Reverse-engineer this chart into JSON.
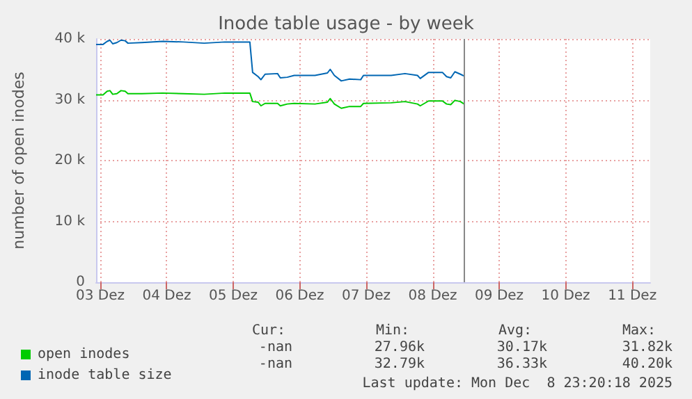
{
  "chart_data": {
    "type": "line",
    "title": "Inode table usage - by week",
    "ylabel": "number of open inodes",
    "xlim": [
      "2025-12-03T10:30",
      "2025-12-11T18:30"
    ],
    "xticks": [
      {
        "value": "2025-12-03T12:00",
        "label": "03 Dez"
      },
      {
        "value": "2025-12-04T12:00",
        "label": "04 Dez"
      },
      {
        "value": "2025-12-05T12:00",
        "label": "05 Dez"
      },
      {
        "value": "2025-12-06T12:00",
        "label": "06 Dez"
      },
      {
        "value": "2025-12-07T12:00",
        "label": "07 Dez"
      },
      {
        "value": "2025-12-08T12:00",
        "label": "08 Dez"
      },
      {
        "value": "2025-12-09T12:00",
        "label": "09 Dez"
      },
      {
        "value": "2025-12-10T12:00",
        "label": "10 Dez"
      },
      {
        "value": "2025-12-11T12:00",
        "label": "11 Dez"
      }
    ],
    "ylim": [
      0,
      40000
    ],
    "yticks": [
      0,
      {
        "value": 10000,
        "label": "10 k"
      },
      {
        "value": 20000,
        "label": "20 k"
      },
      {
        "value": 30000,
        "label": "30 k"
      },
      {
        "value": 40000,
        "label": "40 k"
      }
    ],
    "x": [
      "2025-12-03T10:30",
      "2025-12-03T13:00",
      "2025-12-03T14:30",
      "2025-12-03T15:30",
      "2025-12-03T16:30",
      "2025-12-03T18:00",
      "2025-12-03T19:30",
      "2025-12-03T21:00",
      "2025-12-03T22:00",
      "2025-12-04T03:00",
      "2025-12-04T10:30",
      "2025-12-04T18:00",
      "2025-12-05T01:30",
      "2025-12-05T09:00",
      "2025-12-05T18:00",
      "2025-12-05T19:00",
      "2025-12-05T21:00",
      "2025-12-05T22:00",
      "2025-12-05T23:30",
      "2025-12-06T04:00",
      "2025-12-06T05:00",
      "2025-12-06T07:30",
      "2025-12-06T10:00",
      "2025-12-06T17:30",
      "2025-12-06T22:00",
      "2025-12-06T23:00",
      "2025-12-07T00:30",
      "2025-12-07T03:00",
      "2025-12-07T06:00",
      "2025-12-07T10:00",
      "2025-12-07T11:00",
      "2025-12-07T21:00",
      "2025-12-08T02:00",
      "2025-12-08T06:30",
      "2025-12-08T07:30",
      "2025-12-08T10:30",
      "2025-12-08T15:30",
      "2025-12-08T17:00",
      "2025-12-08T18:30",
      "2025-12-08T20:00",
      "2025-12-08T22:00",
      "2025-12-08T23:20"
    ],
    "series": [
      {
        "name": "open inodes",
        "color": "#00cc00",
        "values": [
          30800,
          30800,
          31400,
          31500,
          30900,
          31000,
          31500,
          31400,
          31000,
          31000,
          31100,
          31000,
          30900,
          31100,
          31100,
          29700,
          29600,
          29000,
          29400,
          29400,
          29000,
          29300,
          29400,
          29300,
          29600,
          30200,
          29300,
          28600,
          28900,
          28900,
          29400,
          29500,
          29700,
          29300,
          29000,
          29800,
          29800,
          29300,
          29200,
          29900,
          29700,
          29300
        ]
      },
      {
        "name": "inode table size",
        "color": "#0066b3",
        "values": [
          39100,
          39100,
          39600,
          39800,
          39200,
          39400,
          39800,
          39700,
          39300,
          39400,
          39600,
          39500,
          39300,
          39500,
          39500,
          34500,
          33800,
          33300,
          34200,
          34300,
          33600,
          33700,
          34000,
          34000,
          34400,
          35000,
          34000,
          33100,
          33400,
          33300,
          34000,
          34000,
          34300,
          34000,
          33500,
          34500,
          34500,
          33800,
          33600,
          34600,
          34200,
          33900
        ]
      }
    ],
    "ref_lines": [
      {
        "axis": "x",
        "value": "2025-12-08T23:20",
        "color": "#888888"
      }
    ],
    "grid": true,
    "legend": "bottom left",
    "marker": "none",
    "line_style": "solid",
    "annotations": [
      "Cur:",
      "Min:",
      "Avg:",
      "Max:",
      "-nan",
      "27.96k",
      "30.17k",
      "31.82k",
      "-nan",
      "32.79k",
      "36.33k",
      "40.20k",
      "Last update: Mon Dec  8 23:20:18 2025"
    ]
  }
}
